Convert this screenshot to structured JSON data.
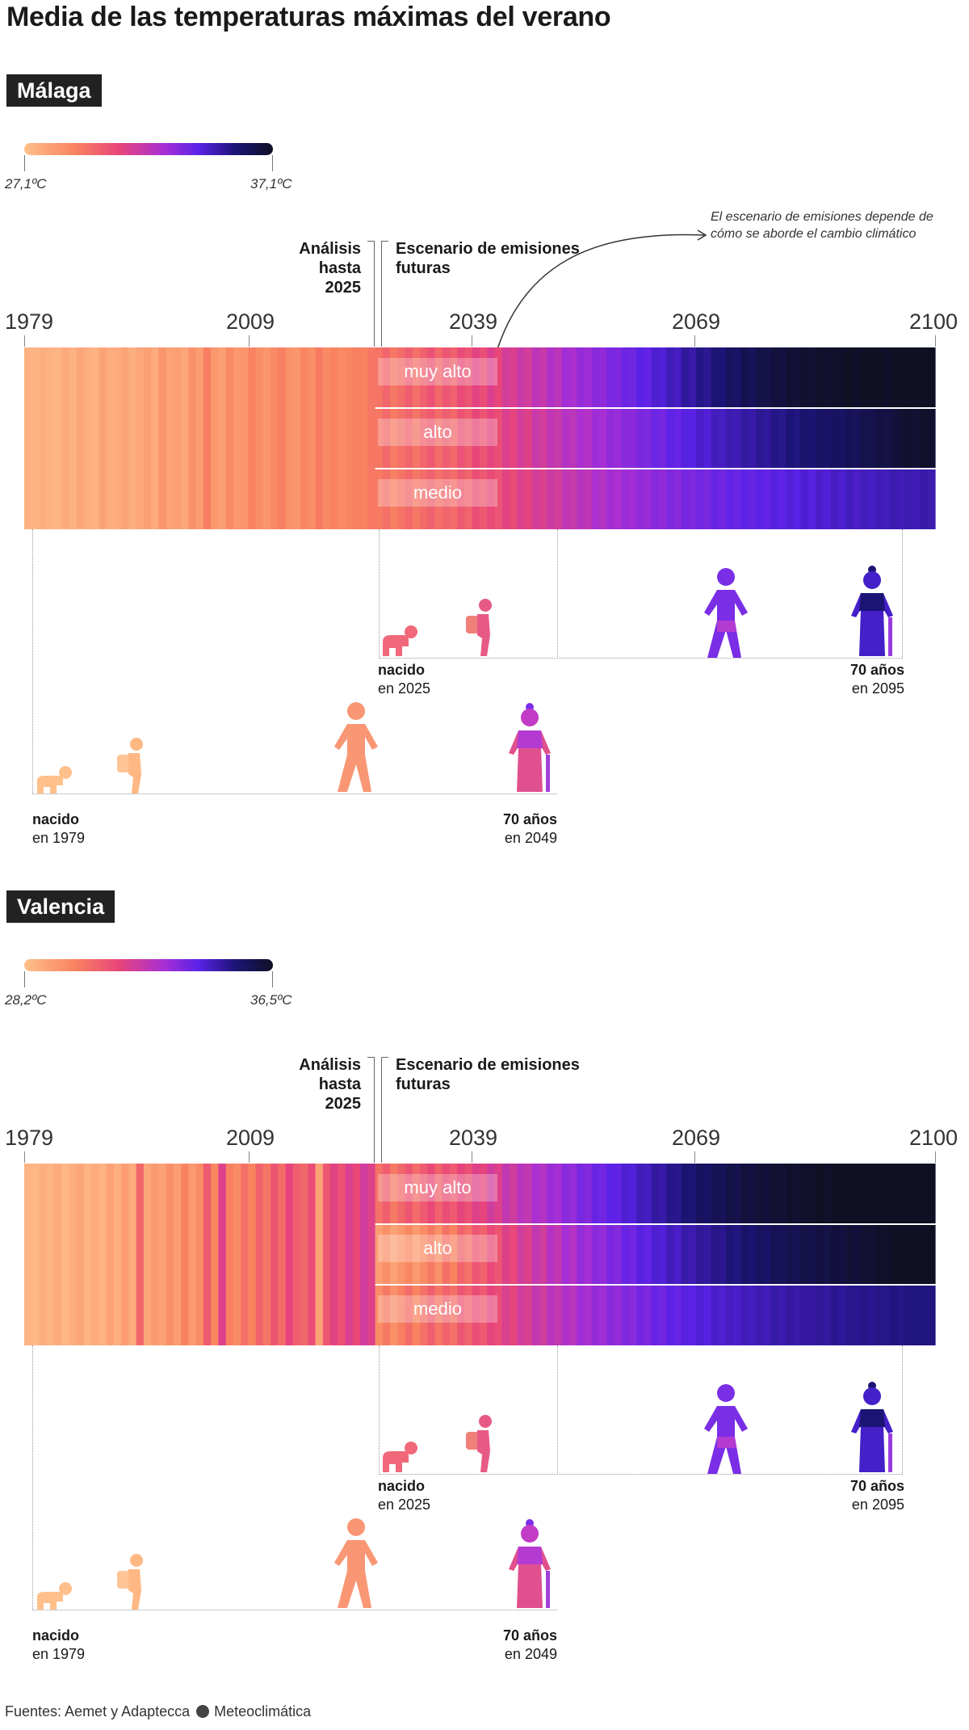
{
  "title": "Media de las temperaturas máximas del verano",
  "phase_labels": {
    "analysis": "Análisis hasta 2025",
    "scenario": "Escenario de emisiones futuras"
  },
  "annotation": "El escenario de emisiones depende de cómo se aborde el cambio climático",
  "scenario_names": [
    "muy alto",
    "alto",
    "medio"
  ],
  "axis_years": [
    "1979",
    "2009",
    "2039",
    "2069",
    "2100"
  ],
  "people": {
    "a": {
      "born": "nacido",
      "born_year": "en 1979",
      "age": "70 años",
      "age_year": "en 2049"
    },
    "b": {
      "born": "nacido",
      "born_year": "en 2025",
      "age": "70 años",
      "age_year": "en 2095"
    }
  },
  "footer": {
    "sources": "Fuentes: Aemet y Adaptecca",
    "brand": "Meteoclimática"
  },
  "colors": {
    "ramp": [
      "#ffc08c",
      "#f9845f",
      "#e8457a",
      "#a82fd4",
      "#5b22e8",
      "#1c1475",
      "#101025"
    ],
    "dark_label": "#222222"
  },
  "chart_data": [
    {
      "type": "heatmap",
      "city": "Málaga",
      "legend": {
        "min_label": "27,1ºC",
        "max_label": "37,1ºC",
        "min": 27.1,
        "max": 37.1
      },
      "x_range": [
        1979,
        2100
      ],
      "split_year": 2025,
      "x_ticks": [
        1979,
        2009,
        2039,
        2069,
        2100
      ],
      "historical": {
        "start": 1979,
        "values": [
          27.5,
          27.4,
          27.6,
          27.5,
          27.4,
          27.7,
          27.5,
          27.8,
          27.6,
          27.5,
          27.9,
          27.6,
          27.7,
          27.9,
          27.6,
          27.8,
          28.0,
          27.7,
          28.3,
          27.9,
          28.0,
          27.8,
          28.4,
          28.1,
          28.9,
          28.2,
          28.0,
          28.6,
          28.2,
          28.3,
          28.8,
          28.5,
          28.3,
          28.6,
          28.9,
          28.4,
          28.3,
          28.7,
          28.5,
          29.0,
          28.6,
          28.8,
          28.6,
          28.7,
          28.9,
          28.8,
          29.1
        ]
      },
      "scenarios": [
        {
          "name": "muy alto",
          "start": 2026,
          "values": [
            29.2,
            29.6,
            29.1,
            29.4,
            29.8,
            29.3,
            29.7,
            30.1,
            29.5,
            30.0,
            29.7,
            30.3,
            30.0,
            30.6,
            30.2,
            30.8,
            30.4,
            31.0,
            30.8,
            31.3,
            31.0,
            31.6,
            31.3,
            31.9,
            31.6,
            32.2,
            32.0,
            32.5,
            32.3,
            32.8,
            32.6,
            33.1,
            33.0,
            33.4,
            33.3,
            33.8,
            33.6,
            34.1,
            34.0,
            34.5,
            34.3,
            34.9,
            34.7,
            35.2,
            35.0,
            35.5,
            35.4,
            35.9,
            35.7,
            36.2,
            36.0,
            36.4,
            36.3,
            36.6,
            36.5,
            36.8,
            36.7,
            36.9,
            36.8,
            37.0,
            36.9,
            37.0,
            37.0,
            37.1,
            37.0,
            37.1,
            37.1,
            37.1,
            37.0,
            37.1,
            37.1,
            37.1,
            37.1,
            37.1,
            37.1
          ]
        },
        {
          "name": "alto",
          "start": 2026,
          "values": [
            29.1,
            29.5,
            29.0,
            29.3,
            29.6,
            29.2,
            29.6,
            29.9,
            29.4,
            29.8,
            29.5,
            30.1,
            29.8,
            30.4,
            30.0,
            30.5,
            30.2,
            30.8,
            30.5,
            31.0,
            30.7,
            31.3,
            31.0,
            31.5,
            31.3,
            31.8,
            31.6,
            32.0,
            31.8,
            32.3,
            32.1,
            32.6,
            32.4,
            32.8,
            32.7,
            33.1,
            33.0,
            33.4,
            33.2,
            33.7,
            33.5,
            33.9,
            33.8,
            34.2,
            34.0,
            34.4,
            34.3,
            34.6,
            34.5,
            34.8,
            34.7,
            35.0,
            34.9,
            35.2,
            35.1,
            35.4,
            35.3,
            35.6,
            35.5,
            35.8,
            35.7,
            35.9,
            35.8,
            36.1,
            36.0,
            36.3,
            36.2,
            36.5,
            36.4,
            36.6,
            36.8,
            36.9,
            36.8,
            37.0,
            36.9
          ]
        },
        {
          "name": "medio",
          "start": 2026,
          "values": [
            29.0,
            29.3,
            28.9,
            29.2,
            29.5,
            29.1,
            29.4,
            29.7,
            29.3,
            29.6,
            29.4,
            29.9,
            29.6,
            30.2,
            29.9,
            30.3,
            30.0,
            30.6,
            30.3,
            30.8,
            30.5,
            31.0,
            30.8,
            31.2,
            31.0,
            31.5,
            31.3,
            31.7,
            31.5,
            32.0,
            31.8,
            32.2,
            32.0,
            32.4,
            32.2,
            32.6,
            32.4,
            32.8,
            32.6,
            33.0,
            32.8,
            33.2,
            33.0,
            33.3,
            33.1,
            33.5,
            33.3,
            33.6,
            33.4,
            33.7,
            33.5,
            33.8,
            33.6,
            33.9,
            33.7,
            34.0,
            33.8,
            34.1,
            33.9,
            34.2,
            34.0,
            34.3,
            34.1,
            34.4,
            34.2,
            34.4,
            34.3,
            34.5,
            34.4,
            34.6,
            34.5,
            34.6,
            34.5,
            34.7,
            34.6
          ]
        }
      ]
    },
    {
      "type": "heatmap",
      "city": "Valencia",
      "legend": {
        "min_label": "28,2ºC",
        "max_label": "36,5ºC",
        "min": 28.2,
        "max": 36.5
      },
      "x_range": [
        1979,
        2100
      ],
      "split_year": 2025,
      "x_ticks": [
        1979,
        2009,
        2039,
        2069,
        2100
      ],
      "historical": {
        "start": 1979,
        "values": [
          28.5,
          28.4,
          28.6,
          28.5,
          28.7,
          28.4,
          28.6,
          28.8,
          28.5,
          28.7,
          28.5,
          28.9,
          28.6,
          29.0,
          28.7,
          30.2,
          28.8,
          29.1,
          28.9,
          29.3,
          29.0,
          29.6,
          29.1,
          29.4,
          30.5,
          29.5,
          31.2,
          29.7,
          29.4,
          30.0,
          29.6,
          30.3,
          29.9,
          30.6,
          30.1,
          31.0,
          30.4,
          30.2,
          30.8,
          28.9,
          30.6,
          31.1,
          30.7,
          31.3,
          30.9,
          31.5,
          31.2
        ]
      },
      "scenarios": [
        {
          "name": "muy alto",
          "start": 2026,
          "values": [
            30.0,
            30.4,
            29.8,
            30.2,
            30.6,
            30.1,
            30.5,
            30.9,
            30.3,
            30.8,
            30.5,
            31.0,
            30.7,
            31.2,
            31.0,
            31.5,
            31.2,
            31.8,
            31.5,
            32.0,
            31.8,
            32.3,
            32.1,
            32.6,
            32.4,
            32.9,
            32.7,
            33.2,
            33.0,
            33.5,
            33.3,
            33.7,
            33.6,
            34.0,
            33.9,
            34.3,
            34.2,
            34.6,
            34.5,
            34.9,
            34.8,
            35.2,
            35.1,
            35.5,
            35.4,
            35.7,
            35.6,
            35.9,
            35.8,
            36.1,
            36.0,
            36.2,
            36.1,
            36.3,
            36.2,
            36.4,
            36.3,
            36.4,
            36.4,
            36.5,
            36.4,
            36.5,
            36.5,
            36.5,
            36.5,
            36.5,
            36.5,
            36.5,
            36.5,
            36.5,
            36.5,
            36.5,
            36.5,
            36.5,
            36.5
          ]
        },
        {
          "name": "alto",
          "start": 2026,
          "values": [
            29.0,
            29.3,
            28.9,
            29.2,
            29.5,
            29.1,
            29.4,
            29.8,
            29.3,
            30.0,
            29.6,
            30.3,
            30.0,
            30.6,
            30.3,
            30.9,
            30.6,
            31.2,
            30.9,
            31.5,
            31.2,
            31.8,
            31.5,
            32.1,
            31.8,
            32.4,
            32.1,
            32.7,
            32.4,
            32.9,
            32.7,
            33.2,
            33.0,
            33.5,
            33.3,
            33.8,
            33.6,
            34.0,
            33.9,
            34.3,
            34.1,
            34.5,
            34.4,
            34.7,
            34.6,
            34.9,
            34.8,
            35.1,
            35.0,
            35.3,
            35.2,
            35.5,
            35.4,
            35.7,
            35.6,
            35.8,
            35.7,
            35.9,
            35.8,
            36.0,
            35.9,
            36.1,
            36.0,
            36.2,
            36.1,
            36.3,
            36.3,
            36.4,
            36.4,
            36.5,
            36.5,
            36.5,
            36.5,
            36.5,
            36.5
          ]
        },
        {
          "name": "medio",
          "start": 2026,
          "values": [
            29.4,
            29.8,
            29.3,
            29.7,
            30.1,
            29.6,
            30.0,
            30.4,
            29.9,
            30.3,
            30.0,
            30.6,
            30.3,
            30.8,
            30.5,
            31.0,
            30.8,
            31.3,
            31.0,
            31.5,
            31.3,
            31.8,
            31.5,
            32.0,
            31.8,
            32.2,
            32.0,
            32.5,
            32.3,
            32.7,
            32.5,
            32.9,
            32.7,
            33.1,
            32.9,
            33.3,
            33.1,
            33.5,
            33.3,
            33.7,
            33.5,
            33.8,
            33.7,
            34.0,
            33.8,
            34.1,
            34.0,
            34.2,
            34.1,
            34.3,
            34.2,
            34.4,
            34.3,
            34.5,
            34.4,
            34.6,
            34.5,
            34.6,
            34.6,
            34.7,
            34.6,
            34.8,
            34.7,
            34.8,
            34.8,
            34.9,
            34.8,
            34.9,
            34.9,
            35.0,
            34.9,
            35.0,
            35.0,
            35.0,
            35.0
          ]
        }
      ]
    }
  ]
}
